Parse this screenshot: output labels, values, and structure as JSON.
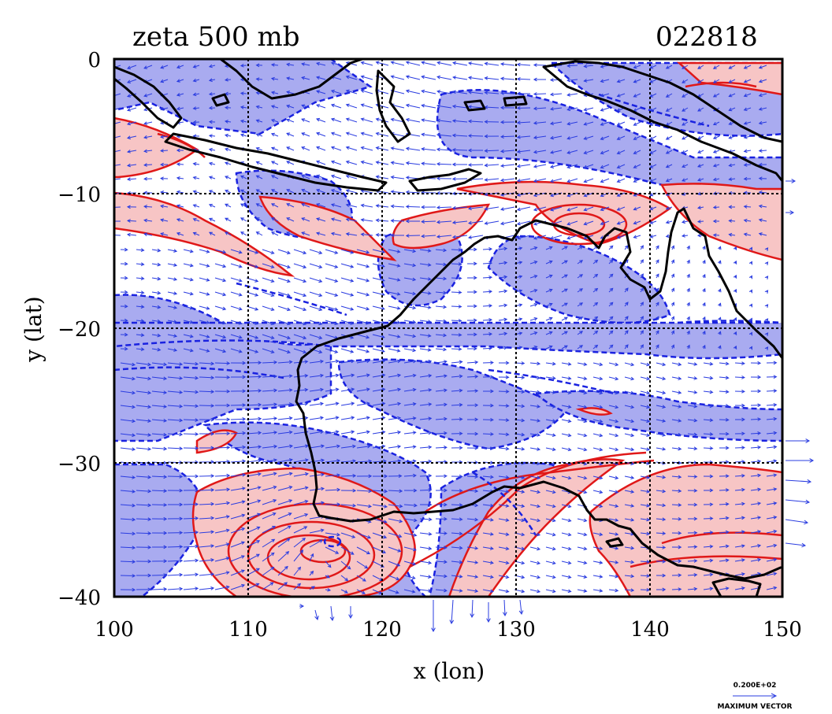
{
  "header": {
    "title": "zeta 500 mb",
    "timestamp": "022818"
  },
  "axes": {
    "xlabel": "x (lon)",
    "ylabel": "y (lat)",
    "x_ticks": [
      "100",
      "110",
      "120",
      "130",
      "140",
      "150"
    ],
    "y_ticks": [
      "0",
      "−10",
      "−20",
      "−30",
      "−40"
    ],
    "x_range": [
      100,
      150
    ],
    "y_range": [
      -40,
      0
    ],
    "grid": true
  },
  "legend": {
    "vector_value": "0.200E+02",
    "vector_caption": "MAXIMUM VECTOR"
  },
  "colors": {
    "positive_fill": "#f7c5c5",
    "positive_contour": "#e01818",
    "negative_fill": "#a9abf0",
    "negative_contour": "#1a22e0",
    "wind_vectors": "#2a3ce0",
    "coastline": "#000000"
  }
}
